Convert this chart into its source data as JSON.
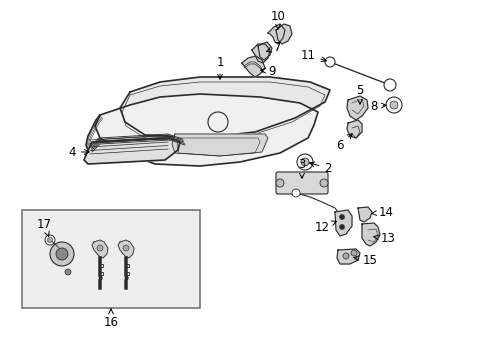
{
  "background_color": "#ffffff",
  "fig_width": 4.89,
  "fig_height": 3.6,
  "dpi": 100,
  "line_color": "#2a2a2a",
  "fill_color": "#e8e8e8",
  "subbox_fill": "#e8e8e8",
  "subbox_border": "#888888"
}
